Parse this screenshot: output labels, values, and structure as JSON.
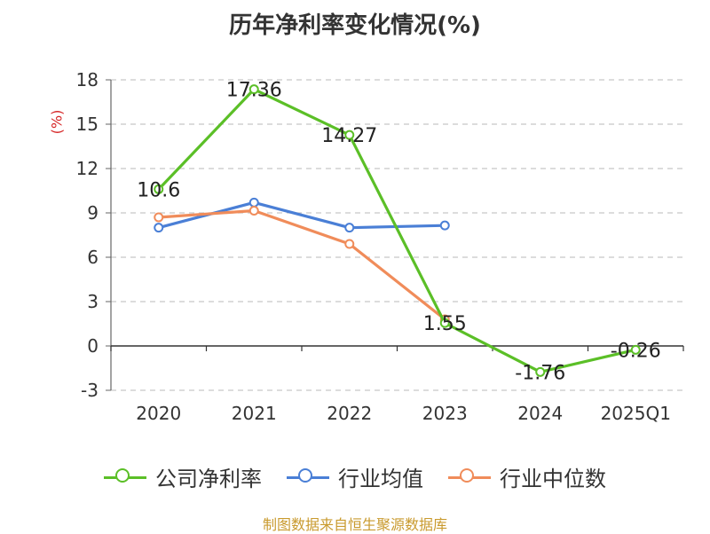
{
  "chart_data": {
    "type": "line",
    "title": "历年净利率变化情况(%)",
    "y_unit": "(%)",
    "categories": [
      "2020",
      "2021",
      "2022",
      "2023",
      "2024",
      "2025Q1"
    ],
    "ylim": [
      -3,
      18
    ],
    "yticks": [
      "-3",
      "0",
      "3",
      "6",
      "9",
      "12",
      "15",
      "18"
    ],
    "grid": true,
    "legend_position": "bottom",
    "series": [
      {
        "name": "公司净利率",
        "color": "#5bbf27",
        "values": [
          10.6,
          17.36,
          14.27,
          1.55,
          -1.76,
          -0.26
        ],
        "labels": [
          "10.6",
          "17.36",
          "14.27",
          "1.55",
          "-1.76",
          "-0.26"
        ]
      },
      {
        "name": "行业均值",
        "color": "#4a7fd6",
        "values": [
          8.0,
          9.7,
          8.0,
          8.15,
          null,
          null
        ]
      },
      {
        "name": "行业中位数",
        "color": "#f08c5a",
        "values": [
          8.7,
          9.15,
          6.9,
          1.8,
          null,
          null
        ]
      }
    ]
  },
  "source": "制图数据来自恒生聚源数据库"
}
